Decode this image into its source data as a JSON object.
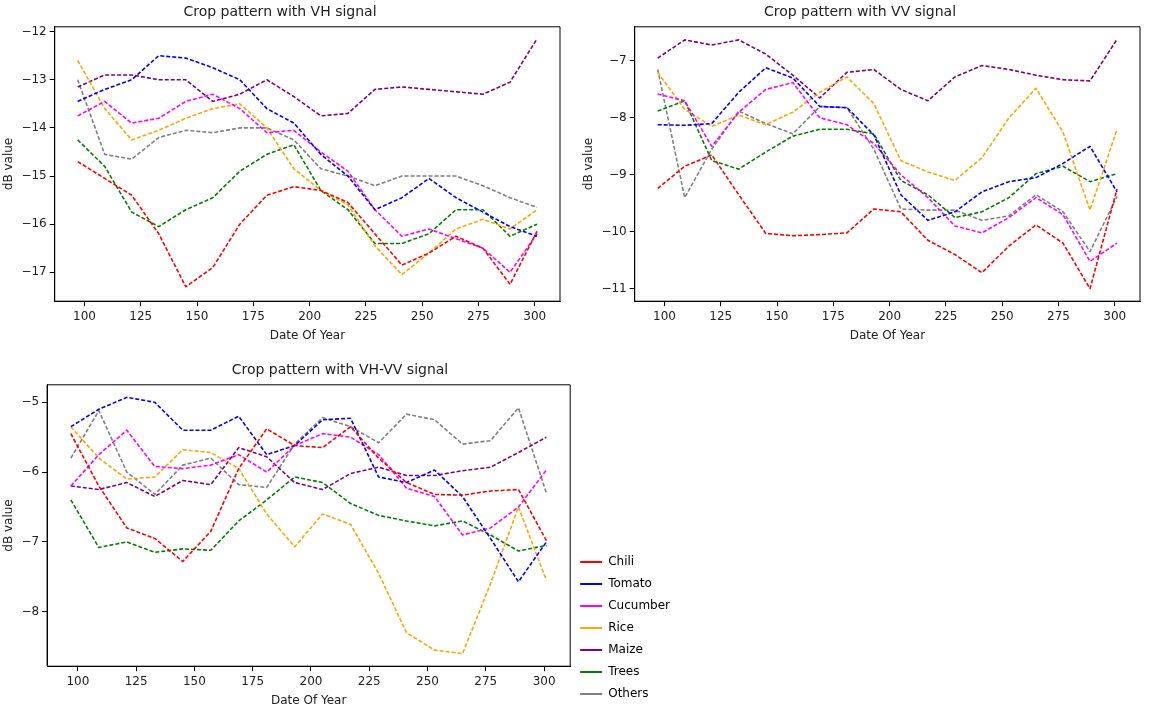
{
  "chart_data": [
    {
      "type": "line",
      "title": "Crop pattern with VH signal",
      "xlabel": "Date Of Year",
      "ylabel": "dB value",
      "line_style": "dashed",
      "marker": "none",
      "grid": false,
      "legend": false,
      "x": [
        97,
        109,
        121,
        133,
        145,
        157,
        169,
        181,
        193,
        205,
        217,
        229,
        241,
        253,
        265,
        277,
        289,
        301
      ],
      "xlim": [
        86.8,
        311.2
      ],
      "xticks": [
        100,
        125,
        150,
        175,
        200,
        225,
        250,
        275,
        300
      ],
      "ylim": [
        -17.6,
        -11.9
      ],
      "yticks": [
        -17,
        -16,
        -15,
        -14,
        -13,
        -12
      ],
      "series": [
        {
          "color": "#ff0000",
          "values": [
            -14.7,
            -15.05,
            -15.4,
            -16.2,
            -17.3,
            -16.9,
            -16.0,
            -15.4,
            -15.22,
            -15.3,
            -15.55,
            -16.2,
            -16.85,
            -16.6,
            -16.25,
            -16.5,
            -17.25,
            -16.15
          ]
        },
        {
          "color": "#0000ff",
          "values": [
            -13.45,
            -13.2,
            -13.0,
            -12.5,
            -12.55,
            -12.75,
            -13.0,
            -13.6,
            -13.9,
            -14.55,
            -15.0,
            -15.7,
            -15.45,
            -15.05,
            -15.45,
            -15.75,
            -16.05,
            -16.25
          ]
        },
        {
          "color": "#ff00ff",
          "values": [
            -13.75,
            -13.45,
            -13.9,
            -13.8,
            -13.45,
            -13.3,
            -13.6,
            -14.1,
            -14.05,
            -14.5,
            -14.9,
            -15.7,
            -16.25,
            -16.1,
            -16.3,
            -16.5,
            -17.0,
            -16.2
          ]
        },
        {
          "color": "#ffa500",
          "values": [
            -12.6,
            -13.6,
            -14.25,
            -14.05,
            -13.8,
            -13.6,
            -13.5,
            -14.0,
            -14.85,
            -15.3,
            -15.6,
            -16.45,
            -17.05,
            -16.6,
            -16.1,
            -15.9,
            -16.1,
            -15.7
          ]
        },
        {
          "color": "#800080",
          "values": [
            -13.15,
            -12.9,
            -12.9,
            -13.0,
            -13.0,
            -13.45,
            -13.3,
            -13.0,
            -13.35,
            -13.75,
            -13.7,
            -13.2,
            -13.15,
            -13.2,
            -13.25,
            -13.3,
            -13.05,
            -12.15
          ]
        },
        {
          "color": "#008000",
          "values": [
            -14.25,
            -14.8,
            -15.75,
            -16.05,
            -15.7,
            -15.45,
            -14.9,
            -14.55,
            -14.35,
            -15.3,
            -15.7,
            -16.4,
            -16.4,
            -16.2,
            -15.7,
            -15.7,
            -16.25,
            -16.0
          ]
        },
        {
          "color": "#808080",
          "values": [
            -13.0,
            -14.55,
            -14.65,
            -14.2,
            -14.05,
            -14.1,
            -14.0,
            -14.0,
            -14.25,
            -14.85,
            -15.0,
            -15.2,
            -15.0,
            -15.0,
            -15.0,
            -15.2,
            -15.45,
            -15.65
          ]
        }
      ]
    },
    {
      "type": "line",
      "title": "Crop pattern with VV signal",
      "xlabel": "Date Of Year",
      "ylabel": "dB value",
      "line_style": "dashed",
      "marker": "none",
      "grid": false,
      "legend": false,
      "x": [
        97,
        109,
        121,
        133,
        145,
        157,
        169,
        181,
        193,
        205,
        217,
        229,
        241,
        253,
        265,
        277,
        289,
        301
      ],
      "xlim": [
        86.8,
        311.2
      ],
      "xticks": [
        100,
        125,
        150,
        175,
        200,
        225,
        250,
        275,
        300
      ],
      "ylim": [
        -11.22,
        -6.4
      ],
      "yticks": [
        -11,
        -10,
        -9,
        -8,
        -7
      ],
      "series": [
        {
          "color": "#ff0000",
          "values": [
            -9.24,
            -8.85,
            -8.65,
            -9.35,
            -10.03,
            -10.07,
            -10.05,
            -10.02,
            -9.6,
            -9.65,
            -10.15,
            -10.4,
            -10.72,
            -10.25,
            -9.88,
            -10.2,
            -11.0,
            -9.25
          ]
        },
        {
          "color": "#0000ff",
          "values": [
            -8.12,
            -8.13,
            -8.1,
            -7.55,
            -7.12,
            -7.3,
            -7.8,
            -7.82,
            -8.3,
            -9.35,
            -9.8,
            -9.65,
            -9.3,
            -9.12,
            -9.05,
            -8.8,
            -8.5,
            -9.3
          ]
        },
        {
          "color": "#ff00ff",
          "values": [
            -7.58,
            -7.7,
            -8.5,
            -7.9,
            -7.5,
            -7.38,
            -8.0,
            -8.12,
            -8.45,
            -9.0,
            -9.4,
            -9.9,
            -10.02,
            -9.75,
            -9.4,
            -9.7,
            -10.52,
            -10.2
          ]
        },
        {
          "color": "#ffa500",
          "values": [
            -7.2,
            -7.85,
            -8.15,
            -7.95,
            -8.12,
            -7.9,
            -7.55,
            -7.28,
            -7.75,
            -8.75,
            -8.95,
            -9.1,
            -8.7,
            -8.0,
            -7.48,
            -8.25,
            -9.62,
            -8.2
          ]
        },
        {
          "color": "#800080",
          "values": [
            -6.95,
            -6.63,
            -6.72,
            -6.63,
            -6.88,
            -7.25,
            -7.65,
            -7.2,
            -7.15,
            -7.5,
            -7.7,
            -7.28,
            -7.08,
            -7.15,
            -7.25,
            -7.33,
            -7.35,
            -6.62
          ]
        },
        {
          "color": "#008000",
          "values": [
            -7.88,
            -7.7,
            -8.75,
            -8.9,
            -8.6,
            -8.32,
            -8.2,
            -8.2,
            -8.28,
            -9.1,
            -9.35,
            -9.75,
            -9.65,
            -9.4,
            -8.98,
            -8.85,
            -9.12,
            -8.98
          ]
        },
        {
          "color": "#808080",
          "values": [
            -7.15,
            -9.4,
            -8.55,
            -7.88,
            -8.1,
            -8.28,
            -7.8,
            -7.82,
            -8.55,
            -9.6,
            -9.62,
            -9.62,
            -9.8,
            -9.72,
            -9.35,
            -9.65,
            -10.35,
            -9.38
          ]
        }
      ]
    },
    {
      "type": "line",
      "title": "Crop pattern with VH-VV signal",
      "xlabel": "Date Of Year",
      "ylabel": "dB value",
      "line_style": "dashed",
      "marker": "none",
      "grid": false,
      "legend": "right",
      "x": [
        97,
        109,
        121,
        133,
        145,
        157,
        169,
        181,
        193,
        205,
        217,
        229,
        241,
        253,
        265,
        277,
        289,
        301
      ],
      "xlim": [
        86.8,
        311.2
      ],
      "xticks": [
        100,
        125,
        150,
        175,
        200,
        225,
        250,
        275,
        300
      ],
      "ylim": [
        -8.78,
        -4.75
      ],
      "yticks": [
        -8,
        -7,
        -6,
        -5
      ],
      "series": [
        {
          "name": "Chili",
          "color": "#ff0000",
          "values": [
            -5.45,
            -6.2,
            -6.8,
            -6.95,
            -7.28,
            -6.85,
            -5.95,
            -5.38,
            -5.62,
            -5.65,
            -5.35,
            -5.8,
            -6.15,
            -6.32,
            -6.33,
            -6.27,
            -6.25,
            -6.98
          ]
        },
        {
          "name": "Tomato",
          "color": "#0000ff",
          "values": [
            -5.35,
            -5.1,
            -4.93,
            -5.0,
            -5.4,
            -5.4,
            -5.2,
            -5.75,
            -5.62,
            -5.25,
            -5.23,
            -6.07,
            -6.15,
            -5.97,
            -6.35,
            -6.95,
            -7.57,
            -7.0
          ]
        },
        {
          "name": "Cucumber",
          "color": "#ff00ff",
          "values": [
            -6.2,
            -5.75,
            -5.4,
            -5.92,
            -5.95,
            -5.9,
            -5.75,
            -6.0,
            -5.62,
            -5.45,
            -5.5,
            -5.75,
            -6.23,
            -6.35,
            -6.9,
            -6.8,
            -6.5,
            -5.97
          ]
        },
        {
          "name": "Rice",
          "color": "#ffa500",
          "values": [
            -5.35,
            -5.8,
            -6.1,
            -6.07,
            -5.68,
            -5.72,
            -5.95,
            -6.6,
            -7.07,
            -6.6,
            -6.75,
            -7.45,
            -8.3,
            -8.55,
            -8.6,
            -7.6,
            -6.5,
            -7.55
          ]
        },
        {
          "name": "Maize",
          "color": "#800080",
          "values": [
            -6.2,
            -6.25,
            -6.15,
            -6.35,
            -6.12,
            -6.18,
            -5.65,
            -5.78,
            -6.15,
            -6.25,
            -6.02,
            -5.93,
            -6.05,
            -6.05,
            -5.98,
            -5.93,
            -5.72,
            -5.5
          ]
        },
        {
          "name": "Trees",
          "color": "#008000",
          "values": [
            -6.4,
            -7.08,
            -7.0,
            -7.15,
            -7.1,
            -7.12,
            -6.7,
            -6.4,
            -6.07,
            -6.15,
            -6.45,
            -6.62,
            -6.7,
            -6.77,
            -6.7,
            -6.9,
            -7.13,
            -7.05
          ]
        },
        {
          "name": "Others",
          "color": "#808080",
          "values": [
            -5.8,
            -5.12,
            -6.0,
            -6.32,
            -5.9,
            -5.8,
            -6.18,
            -6.22,
            -5.6,
            -5.22,
            -5.35,
            -5.58,
            -5.17,
            -5.25,
            -5.6,
            -5.55,
            -5.08,
            -6.3
          ]
        }
      ]
    }
  ]
}
